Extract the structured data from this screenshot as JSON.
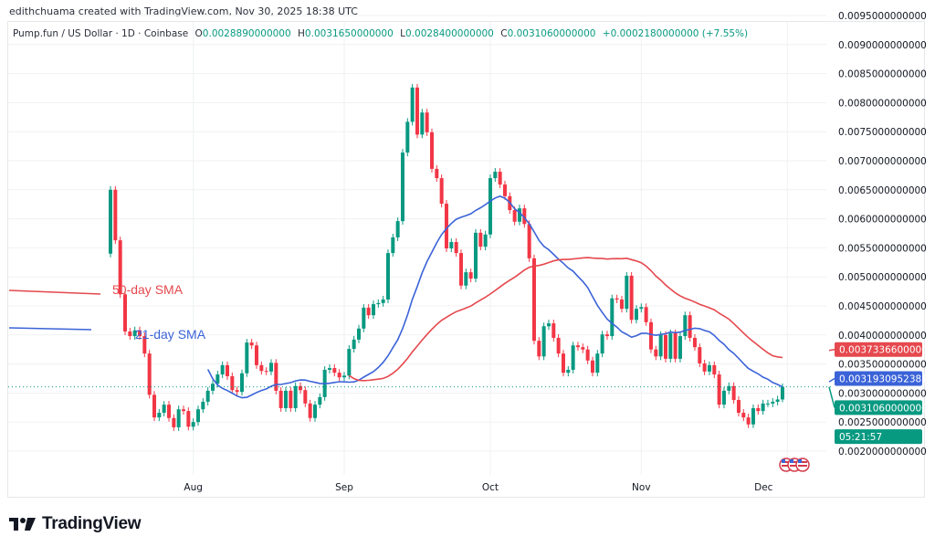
{
  "credit": "edithchuama created with TradingView.com, Nov 30, 2025 18:38 UTC",
  "legend": {
    "symbol": "Pump.fun / US Dollar · 1D · Coinbase",
    "o_label": "O",
    "o": "0.0028890000000",
    "h_label": "H",
    "h": "0.0031650000000",
    "l_label": "L",
    "l": "0.0028400000000",
    "c_label": "C",
    "c": "0.0031060000000",
    "change": "+0.0002180000000 (+7.55%)"
  },
  "annotations": {
    "sma50_label": "50-day SMA",
    "sma21_label": "21-day SMA"
  },
  "price_labels": {
    "sma50": "0.0037336600000",
    "sma21": "0.0031930952381",
    "last": "0.0031060000000",
    "countdown": "05:21:57"
  },
  "logo": {
    "text": "TradingView"
  },
  "colors": {
    "up": "#089981",
    "down": "#f23645",
    "sma50": "#e5484d",
    "sma21": "#3b63d8",
    "grid": "#f0f1f3"
  },
  "chart_data": {
    "type": "candlestick",
    "symbol": "Pump.fun / US Dollar",
    "interval": "1D",
    "y_ticks": [
      "0.0020000000000",
      "0.0025000000000",
      "0.0030000000000",
      "0.0035000000000",
      "0.0040000000000",
      "0.0045000000000",
      "0.0050000000000",
      "0.0055000000000",
      "0.0060000000000",
      "0.0065000000000",
      "0.0070000000000",
      "0.0075000000000",
      "0.0080000000000",
      "0.0085000000000",
      "0.0090000000000",
      "0.0095000000000"
    ],
    "ylim": [
      0.0018,
      0.0098
    ],
    "x_ticks": [
      {
        "label": "Aug",
        "date": "2025-08-01"
      },
      {
        "label": "Sep",
        "date": "2025-09-01"
      },
      {
        "label": "Oct",
        "date": "2025-10-01"
      },
      {
        "label": "Nov",
        "date": "2025-11-01"
      },
      {
        "label": "Dec",
        "date": "2025-12-01"
      }
    ],
    "grid": true,
    "first_open": 0.0054,
    "last_candle": {
      "open": 0.002889,
      "high": 0.003165,
      "low": 0.00284,
      "close": 0.003106
    },
    "dates": [
      "2025-07-15",
      "2025-07-16",
      "2025-07-17",
      "2025-07-18",
      "2025-07-19",
      "2025-07-20",
      "2025-07-21",
      "2025-07-22",
      "2025-07-23",
      "2025-07-24",
      "2025-07-25",
      "2025-07-26",
      "2025-07-27",
      "2025-07-28",
      "2025-07-29",
      "2025-07-30",
      "2025-07-31",
      "2025-08-01",
      "2025-08-02",
      "2025-08-03",
      "2025-08-04",
      "2025-08-05",
      "2025-08-06",
      "2025-08-07",
      "2025-08-08",
      "2025-08-09",
      "2025-08-10",
      "2025-08-11",
      "2025-08-12",
      "2025-08-13",
      "2025-08-14",
      "2025-08-15",
      "2025-08-16",
      "2025-08-17",
      "2025-08-18",
      "2025-08-19",
      "2025-08-20",
      "2025-08-21",
      "2025-08-22",
      "2025-08-23",
      "2025-08-24",
      "2025-08-25",
      "2025-08-26",
      "2025-08-27",
      "2025-08-28",
      "2025-08-29",
      "2025-08-30",
      "2025-08-31",
      "2025-09-01",
      "2025-09-02",
      "2025-09-03",
      "2025-09-04",
      "2025-09-05",
      "2025-09-06",
      "2025-09-07",
      "2025-09-08",
      "2025-09-09",
      "2025-09-10",
      "2025-09-11",
      "2025-09-12",
      "2025-09-13",
      "2025-09-14",
      "2025-09-15",
      "2025-09-16",
      "2025-09-17",
      "2025-09-18",
      "2025-09-19",
      "2025-09-20",
      "2025-09-21",
      "2025-09-22",
      "2025-09-23",
      "2025-09-24",
      "2025-09-25",
      "2025-09-26",
      "2025-09-27",
      "2025-09-28",
      "2025-09-29",
      "2025-09-30",
      "2025-10-01",
      "2025-10-02",
      "2025-10-03",
      "2025-10-04",
      "2025-10-05",
      "2025-10-06",
      "2025-10-07",
      "2025-10-08",
      "2025-10-09",
      "2025-10-10",
      "2025-10-11",
      "2025-10-12",
      "2025-10-13",
      "2025-10-14",
      "2025-10-15",
      "2025-10-16",
      "2025-10-17",
      "2025-10-18",
      "2025-10-19",
      "2025-10-20",
      "2025-10-21",
      "2025-10-22",
      "2025-10-23",
      "2025-10-24",
      "2025-10-25",
      "2025-10-26",
      "2025-10-27",
      "2025-10-28",
      "2025-10-29",
      "2025-10-30",
      "2025-10-31",
      "2025-11-01",
      "2025-11-02",
      "2025-11-03",
      "2025-11-04",
      "2025-11-05",
      "2025-11-06",
      "2025-11-07",
      "2025-11-08",
      "2025-11-09",
      "2025-11-10",
      "2025-11-11",
      "2025-11-12",
      "2025-11-13",
      "2025-11-14",
      "2025-11-15",
      "2025-11-16",
      "2025-11-17",
      "2025-11-18",
      "2025-11-19",
      "2025-11-20",
      "2025-11-21",
      "2025-11-22",
      "2025-11-23",
      "2025-11-24",
      "2025-11-25",
      "2025-11-26",
      "2025-11-27",
      "2025-11-28",
      "2025-11-29",
      "2025-11-30"
    ],
    "close": [
      0.0065,
      0.00563,
      0.0047,
      0.00406,
      0.00398,
      0.00408,
      0.00398,
      0.00368,
      0.00297,
      0.00258,
      0.00266,
      0.0028,
      0.00257,
      0.00241,
      0.00272,
      0.00269,
      0.00242,
      0.0025,
      0.00272,
      0.00285,
      0.00304,
      0.00316,
      0.00332,
      0.00348,
      0.00329,
      0.00305,
      0.00302,
      0.00334,
      0.00387,
      0.00382,
      0.00348,
      0.00338,
      0.00337,
      0.00352,
      0.00304,
      0.00274,
      0.00304,
      0.00274,
      0.00312,
      0.00305,
      0.00282,
      0.00257,
      0.0028,
      0.00293,
      0.0034,
      0.00343,
      0.00335,
      0.00327,
      0.0033,
      0.00376,
      0.00392,
      0.00411,
      0.00447,
      0.00434,
      0.00453,
      0.00455,
      0.00461,
      0.00541,
      0.00568,
      0.00596,
      0.00714,
      0.00767,
      0.00826,
      0.00745,
      0.00783,
      0.00749,
      0.00686,
      0.0067,
      0.00626,
      0.00549,
      0.0056,
      0.00541,
      0.00485,
      0.00508,
      0.00497,
      0.00576,
      0.00552,
      0.00573,
      0.0067,
      0.00681,
      0.00659,
      0.00639,
      0.00615,
      0.00595,
      0.00618,
      0.00591,
      0.00532,
      0.0039,
      0.00363,
      0.00415,
      0.0042,
      0.00395,
      0.00368,
      0.00335,
      0.0034,
      0.00382,
      0.00379,
      0.00375,
      0.00356,
      0.00335,
      0.00368,
      0.00401,
      0.00398,
      0.00463,
      0.00461,
      0.00445,
      0.00502,
      0.00426,
      0.00445,
      0.00448,
      0.00422,
      0.00375,
      0.00363,
      0.004,
      0.00359,
      0.00403,
      0.00359,
      0.00398,
      0.00434,
      0.00395,
      0.00379,
      0.00351,
      0.00337,
      0.00348,
      0.00332,
      0.0028,
      0.00304,
      0.00312,
      0.00288,
      0.00266,
      0.00258,
      0.00246,
      0.00274,
      0.00269,
      0.00282,
      0.00282,
      0.00285,
      0.002889,
      0.003106
    ],
    "sma_periods": [
      21,
      50
    ]
  }
}
